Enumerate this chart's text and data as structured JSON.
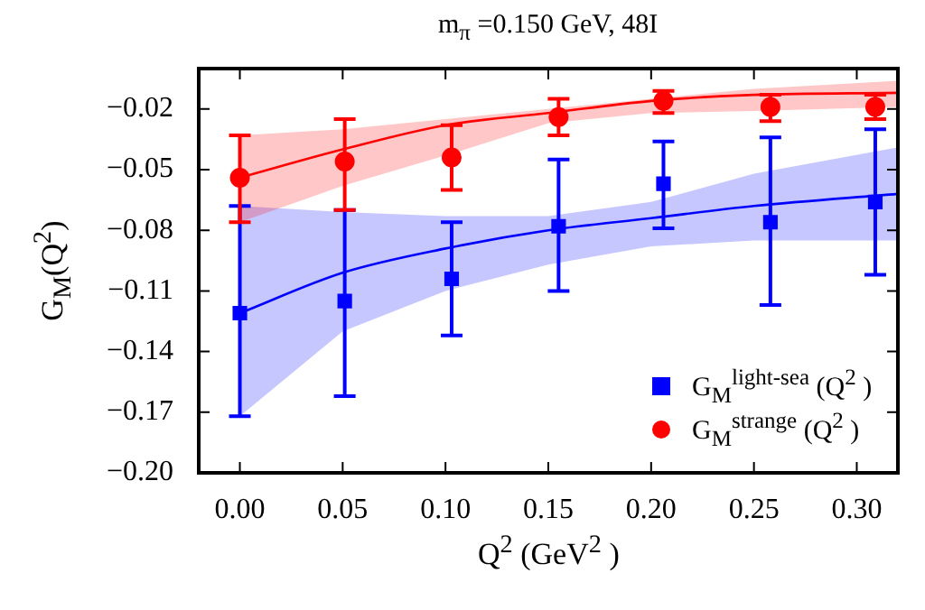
{
  "chart_data": {
    "type": "scatter",
    "title": "m$_{π}$ =0.150 GeV, 48I",
    "xlabel": "Q$^{2}$ (GeV$^{2}$ )",
    "ylabel": "G$_{M}$(Q$^{2}$)",
    "xlim": [
      -0.02,
      0.32
    ],
    "ylim": [
      -0.2,
      0
    ],
    "xticks": [
      {
        "value": 0,
        "label": "0.00"
      },
      {
        "value": 0.05,
        "label": "0.05"
      },
      {
        "value": 0.1,
        "label": "0.10"
      },
      {
        "value": 0.15,
        "label": "0.15"
      },
      {
        "value": 0.2,
        "label": "0.20"
      },
      {
        "value": 0.25,
        "label": "0.25"
      },
      {
        "value": 0.3,
        "label": "0.30"
      }
    ],
    "yticks": [
      {
        "value": -0.2,
        "label": "−0.20"
      },
      {
        "value": -0.17,
        "label": "−0.17"
      },
      {
        "value": -0.14,
        "label": "−0.14"
      },
      {
        "value": -0.11,
        "label": "−0.11"
      },
      {
        "value": -0.08,
        "label": "−0.08"
      },
      {
        "value": -0.05,
        "label": "−0.05"
      },
      {
        "value": -0.02,
        "label": "−0.02"
      }
    ],
    "legend": "bottom right",
    "grid": false,
    "series": [
      {
        "name": "G$_{M}$$^{light-sea}$ (Q$^{2}$ )",
        "marker": "square",
        "color": "#0000ff",
        "x": [
          0,
          0.051,
          0.103,
          0.155,
          0.206,
          0.258,
          0.309
        ],
        "values": [
          -0.121,
          -0.115,
          -0.104,
          -0.078,
          -0.057,
          -0.076,
          -0.066
        ],
        "errors": [
          [
            -0.172,
            -0.068
          ],
          [
            -0.162,
            -0.07
          ],
          [
            -0.132,
            -0.076
          ],
          [
            -0.11,
            -0.045
          ],
          [
            -0.079,
            -0.036
          ],
          [
            -0.117,
            -0.034
          ],
          [
            -0.102,
            -0.03
          ]
        ]
      },
      {
        "name": "G$_{M}$$^{strange}$ (Q$^{2}$ )",
        "marker": "circle",
        "color": "#ff0000",
        "x": [
          0,
          0.051,
          0.103,
          0.155,
          0.206,
          0.258,
          0.309
        ],
        "values": [
          -0.054,
          -0.046,
          -0.044,
          -0.024,
          -0.016,
          -0.019,
          -0.019
        ],
        "errors": [
          [
            -0.076,
            -0.033
          ],
          [
            -0.07,
            -0.025
          ],
          [
            -0.06,
            -0.028
          ],
          [
            -0.033,
            -0.015
          ],
          [
            -0.022,
            -0.011
          ],
          [
            -0.026,
            -0.013
          ],
          [
            -0.025,
            -0.013
          ]
        ]
      },
      {
        "type": "line",
        "color": "#0000ff",
        "x": [
          0,
          0.05,
          0.1,
          0.15,
          0.2,
          0.25,
          0.32
        ],
        "values": [
          -0.121,
          -0.101,
          -0.089,
          -0.08,
          -0.074,
          -0.068,
          -0.062
        ],
        "lower": [
          -0.172,
          -0.13,
          -0.11,
          -0.097,
          -0.088,
          -0.085,
          -0.085
        ],
        "upper": [
          -0.068,
          -0.071,
          -0.073,
          -0.073,
          -0.066,
          -0.052,
          -0.039
        ]
      },
      {
        "type": "line",
        "color": "#ff0000",
        "x": [
          0,
          0.05,
          0.1,
          0.15,
          0.2,
          0.25,
          0.32
        ],
        "values": [
          -0.054,
          -0.04,
          -0.028,
          -0.022,
          -0.016,
          -0.013,
          -0.012
        ],
        "lower": [
          -0.076,
          -0.058,
          -0.043,
          -0.027,
          -0.022,
          -0.021,
          -0.019
        ],
        "upper": [
          -0.033,
          -0.03,
          -0.025,
          -0.02,
          -0.015,
          -0.01,
          -0.006
        ]
      }
    ]
  }
}
